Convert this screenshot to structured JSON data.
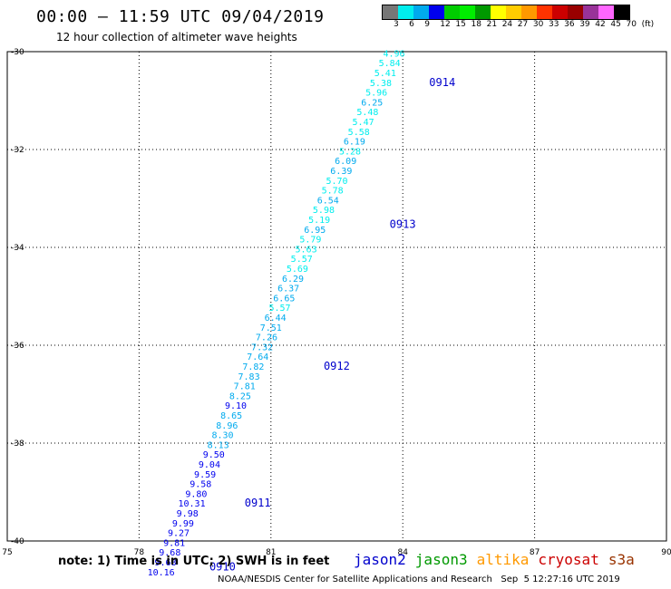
{
  "title": "00:00 – 11:59 UTC 09/04/2019",
  "subtitle": "12 hour collection of altimeter wave heights",
  "legend": {
    "colors": [
      "#777777",
      "#00eeee",
      "#00aaee",
      "#0000ee",
      "#00cc00",
      "#00ee00",
      "#009900",
      "#ffff00",
      "#ffcc00",
      "#ff9900",
      "#ff3300",
      "#cc0000",
      "#990000",
      "#993399",
      "#ff66ff",
      "#000000"
    ],
    "labels": [
      "3",
      "6",
      "9",
      "12",
      "15",
      "18",
      "21",
      "24",
      "27",
      "30",
      "33",
      "36",
      "39",
      "42",
      "45",
      "70",
      "(ft)"
    ]
  },
  "map": {
    "lon_range": [
      75,
      90
    ],
    "lat_range": [
      -40,
      -30
    ],
    "x_ticks": [
      "75",
      "78",
      "81",
      "84",
      "87",
      "90"
    ],
    "y_ticks": [
      "-30",
      "-32",
      "-34",
      "-36",
      "-38",
      "-40"
    ]
  },
  "tracks": [
    {
      "name": "jason2 track",
      "points": [
        {
          "lon": 83.8,
          "lat": -30.1,
          "v": "4.96"
        },
        {
          "lon": 83.7,
          "lat": -30.3,
          "v": "5.84"
        },
        {
          "lon": 83.6,
          "lat": -30.5,
          "v": "5.41"
        },
        {
          "lon": 83.5,
          "lat": -30.7,
          "v": "5.38"
        },
        {
          "lon": 83.4,
          "lat": -30.9,
          "v": "5.96"
        },
        {
          "lon": 83.3,
          "lat": -31.1,
          "v": "6.25"
        },
        {
          "lon": 83.2,
          "lat": -31.3,
          "v": "5.48"
        },
        {
          "lon": 83.1,
          "lat": -31.5,
          "v": "5.47"
        },
        {
          "lon": 83.0,
          "lat": -31.7,
          "v": "5.58"
        },
        {
          "lon": 82.9,
          "lat": -31.9,
          "v": "6.19"
        },
        {
          "lon": 82.8,
          "lat": -32.1,
          "v": "5.28"
        },
        {
          "lon": 82.7,
          "lat": -32.3,
          "v": "6.09"
        },
        {
          "lon": 82.6,
          "lat": -32.5,
          "v": "6.39"
        },
        {
          "lon": 82.5,
          "lat": -32.7,
          "v": "5.70"
        },
        {
          "lon": 82.4,
          "lat": -32.9,
          "v": "5.78"
        },
        {
          "lon": 82.3,
          "lat": -33.1,
          "v": "6.54"
        },
        {
          "lon": 82.2,
          "lat": -33.3,
          "v": "5.98"
        },
        {
          "lon": 82.1,
          "lat": -33.5,
          "v": "5.19"
        },
        {
          "lon": 82.0,
          "lat": -33.7,
          "v": "6.95"
        },
        {
          "lon": 81.9,
          "lat": -33.9,
          "v": "5.79"
        },
        {
          "lon": 81.8,
          "lat": -34.1,
          "v": "5.63"
        },
        {
          "lon": 81.7,
          "lat": -34.3,
          "v": "5.57"
        },
        {
          "lon": 81.6,
          "lat": -34.5,
          "v": "5.69"
        },
        {
          "lon": 81.5,
          "lat": -34.7,
          "v": "6.29"
        },
        {
          "lon": 81.4,
          "lat": -34.9,
          "v": "6.37"
        },
        {
          "lon": 81.3,
          "lat": -35.1,
          "v": "6.65"
        },
        {
          "lon": 81.2,
          "lat": -35.3,
          "v": "5.57"
        },
        {
          "lon": 81.1,
          "lat": -35.5,
          "v": "6.44"
        },
        {
          "lon": 81.0,
          "lat": -35.7,
          "v": "7.51"
        },
        {
          "lon": 80.9,
          "lat": -35.9,
          "v": "7.26"
        },
        {
          "lon": 80.8,
          "lat": -36.1,
          "v": "7.32"
        },
        {
          "lon": 80.7,
          "lat": -36.3,
          "v": "7.64"
        },
        {
          "lon": 80.6,
          "lat": -36.5,
          "v": "7.82"
        },
        {
          "lon": 80.5,
          "lat": -36.7,
          "v": "7.83"
        },
        {
          "lon": 80.4,
          "lat": -36.9,
          "v": "7.81"
        },
        {
          "lon": 80.3,
          "lat": -37.1,
          "v": "8.25"
        },
        {
          "lon": 80.2,
          "lat": -37.3,
          "v": "9.10"
        },
        {
          "lon": 80.1,
          "lat": -37.5,
          "v": "8.65"
        },
        {
          "lon": 80.0,
          "lat": -37.7,
          "v": "8.96"
        },
        {
          "lon": 79.9,
          "lat": -37.9,
          "v": "8.30"
        },
        {
          "lon": 79.8,
          "lat": -38.1,
          "v": "8.13"
        },
        {
          "lon": 79.7,
          "lat": -38.3,
          "v": "9.50"
        },
        {
          "lon": 79.6,
          "lat": -38.5,
          "v": "9.04"
        },
        {
          "lon": 79.5,
          "lat": -38.7,
          "v": "9.59"
        },
        {
          "lon": 79.4,
          "lat": -38.9,
          "v": "9.58"
        },
        {
          "lon": 79.3,
          "lat": -39.1,
          "v": "9.80"
        },
        {
          "lon": 79.2,
          "lat": -39.3,
          "v": "10.31"
        },
        {
          "lon": 79.1,
          "lat": -39.5,
          "v": "9.98"
        },
        {
          "lon": 79.0,
          "lat": -39.7,
          "v": "9.99"
        },
        {
          "lon": 78.9,
          "lat": -39.9,
          "v": "9.27"
        },
        {
          "lon": 78.8,
          "lat": -40.1,
          "v": "9.81"
        },
        {
          "lon": 78.7,
          "lat": -40.3,
          "v": "9.68"
        },
        {
          "lon": 78.6,
          "lat": -40.5,
          "v": "9.68"
        },
        {
          "lon": 78.5,
          "lat": -40.7,
          "v": "10.16"
        }
      ]
    }
  ],
  "time_labels": [
    {
      "text": "0914",
      "lon": 84.6,
      "lat": -30.7
    },
    {
      "text": "0913",
      "lon": 83.7,
      "lat": -33.6
    },
    {
      "text": "0912",
      "lon": 82.2,
      "lat": -36.5
    },
    {
      "text": "0911",
      "lon": 80.4,
      "lat": -39.3
    },
    {
      "text": "0910",
      "lon": 79.6,
      "lat": -40.6
    }
  ],
  "note": "note: 1) Time is in UTC; 2) SWH is in feet",
  "satellites": [
    {
      "name": "jason2",
      "color": "#0000cc"
    },
    {
      "name": "jason3",
      "color": "#009900"
    },
    {
      "name": "altika",
      "color": "#ff9900"
    },
    {
      "name": "cryosat",
      "color": "#cc0000"
    },
    {
      "name": "s3a",
      "color": "#993300"
    }
  ],
  "footer": "NOAA/NESDIS Center for Satellite Applications and Research   Sep  5 12:27:16 UTC 2019"
}
